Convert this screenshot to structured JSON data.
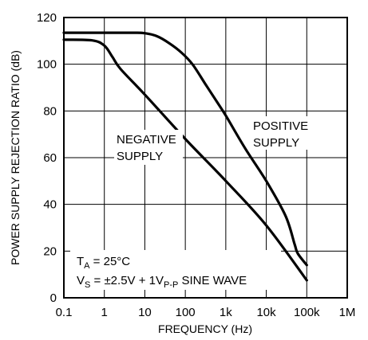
{
  "chart_data": {
    "type": "line",
    "xlabel": "FREQUENCY (Hz)",
    "ylabel": "POWER SUPPLY REJECTION RATIO (dB)",
    "x_scale": "log",
    "xlim": [
      0.1,
      1000000
    ],
    "ylim": [
      0,
      120
    ],
    "grid": true,
    "x_ticks": [
      "0.1",
      "1",
      "10",
      "100",
      "1k",
      "10k",
      "100k",
      "1M"
    ],
    "y_ticks": [
      "0",
      "20",
      "40",
      "60",
      "80",
      "100",
      "120"
    ],
    "series": [
      {
        "name": "POSITIVE SUPPLY",
        "label_lines": [
          "POSITIVE",
          "SUPPLY"
        ],
        "x": [
          0.1,
          1,
          5,
          10,
          20,
          40,
          80,
          150,
          300,
          600,
          1000,
          3000,
          10000,
          30000,
          50000,
          60000,
          100000
        ],
        "y": [
          113.5,
          113.5,
          113.5,
          113.3,
          112,
          109,
          105,
          100,
          92,
          84,
          78,
          64,
          50,
          35,
          23,
          19,
          14
        ]
      },
      {
        "name": "NEGATIVE SUPPLY",
        "label_lines": [
          "NEGATIVE",
          "SUPPLY"
        ],
        "x": [
          0.1,
          0.5,
          1,
          1.6,
          2.5,
          10,
          100,
          1000,
          10000,
          100000
        ],
        "y": [
          110.5,
          110.2,
          108,
          103,
          98,
          87,
          68,
          50,
          31,
          7.5
        ]
      }
    ],
    "annotations": {
      "ta_main": "T",
      "ta_sub": "A",
      "ta_rest": " = 25°C",
      "vs_main": "V",
      "vs_sub": "S",
      "vs_mid": " = ±2.5V + 1V",
      "vs_sub2": "P-P",
      "vs_rest": " SINE WAVE"
    }
  }
}
